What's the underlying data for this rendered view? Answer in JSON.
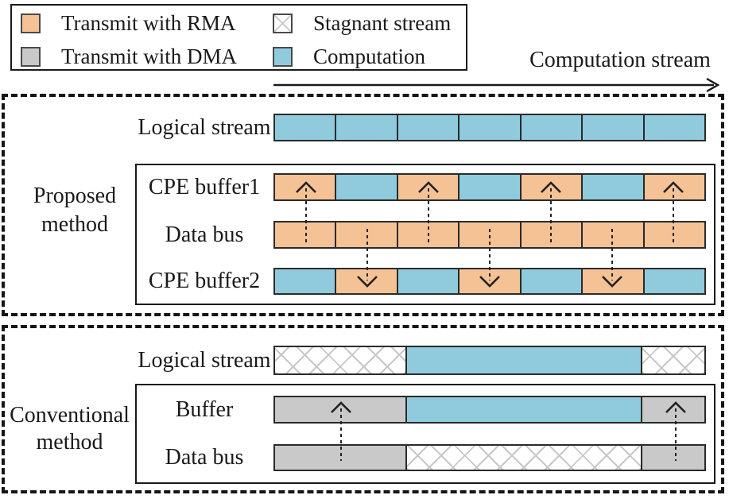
{
  "colors": {
    "rma": "#F5C296",
    "dma": "#C9C9C9",
    "computation": "#8FCBDC",
    "crosshatch": "#C8C8C8",
    "segment_border": "#2A2A2A",
    "text": "#1A1A1A"
  },
  "legend": {
    "items": [
      {
        "swatch": "rma",
        "label": "Transmit with RMA"
      },
      {
        "swatch": "dma",
        "label": "Transmit with DMA"
      },
      {
        "swatch": "stagnant",
        "label": "Stagnant stream"
      },
      {
        "swatch": "computation",
        "label": "Computation"
      }
    ]
  },
  "axis": {
    "label": "Computation stream"
  },
  "proposed": {
    "section_label": [
      "Proposed",
      "method"
    ],
    "labels": {
      "logical": "Logical stream",
      "buffer1": "CPE buffer1",
      "bus": "Data bus",
      "buffer2": "CPE buffer2"
    },
    "bars": {
      "logical": [
        "computation",
        "computation",
        "computation",
        "computation",
        "computation",
        "computation",
        "computation"
      ],
      "buffer1": [
        "rma",
        "computation",
        "rma",
        "computation",
        "rma",
        "computation",
        "rma"
      ],
      "bus": [
        "rma",
        "rma",
        "rma",
        "rma",
        "rma",
        "rma",
        "rma"
      ],
      "buffer2": [
        "computation",
        "rma",
        "computation",
        "rma",
        "computation",
        "rma",
        "computation"
      ]
    },
    "arrows": {
      "bus_to_buffer1_segments": [
        1,
        3,
        5,
        7
      ],
      "bus_to_buffer2_segments": [
        2,
        4,
        6
      ]
    }
  },
  "conventional": {
    "section_label": [
      "Conventional",
      "method"
    ],
    "labels": {
      "logical": "Logical stream",
      "buffer": "Buffer",
      "bus": "Data bus"
    },
    "bars": {
      "logical": [
        {
          "type": "stagnant",
          "frac": 0.306
        },
        {
          "type": "computation",
          "frac": 0.548
        },
        {
          "type": "stagnant",
          "frac": 0.146
        }
      ],
      "buffer": [
        {
          "type": "dma",
          "frac": 0.306
        },
        {
          "type": "computation",
          "frac": 0.548
        },
        {
          "type": "dma",
          "frac": 0.146
        }
      ],
      "bus": [
        {
          "type": "dma",
          "frac": 0.306
        },
        {
          "type": "stagnant",
          "frac": 0.548
        },
        {
          "type": "dma",
          "frac": 0.146
        }
      ]
    },
    "arrows": {
      "bus_to_buffer_positions": [
        0.154,
        0.933
      ]
    }
  }
}
